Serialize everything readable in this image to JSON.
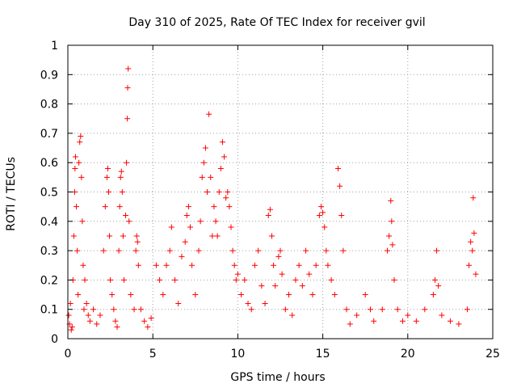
{
  "chart_data": {
    "type": "scatter",
    "title": "Day 310 of 2025, Rate Of TEC Index for receiver gvil",
    "xlabel": "GPS time / hours",
    "ylabel": "ROTI / TECUs",
    "xlim": [
      0,
      25
    ],
    "ylim": [
      0,
      1
    ],
    "xticks": [
      "0",
      "5",
      "10",
      "15",
      "20",
      "25"
    ],
    "yticks": [
      "0",
      "0.1",
      "0.2",
      "0.3",
      "0.4",
      "0.5",
      "0.6",
      "0.7",
      "0.8",
      "0.9",
      "1"
    ],
    "grid": true,
    "marker": "plus",
    "series": [
      {
        "color": "#ff0000",
        "points": [
          [
            0.05,
            0.08
          ],
          [
            0.1,
            0.05
          ],
          [
            0.15,
            0.12
          ],
          [
            0.2,
            0.03
          ],
          [
            0.25,
            0.04
          ],
          [
            0.3,
            0.2
          ],
          [
            0.35,
            0.35
          ],
          [
            0.4,
            0.5
          ],
          [
            0.42,
            0.58
          ],
          [
            0.45,
            0.62
          ],
          [
            0.5,
            0.45
          ],
          [
            0.55,
            0.3
          ],
          [
            0.6,
            0.15
          ],
          [
            0.65,
            0.6
          ],
          [
            0.7,
            0.67
          ],
          [
            0.75,
            0.69
          ],
          [
            0.8,
            0.55
          ],
          [
            0.85,
            0.4
          ],
          [
            0.9,
            0.25
          ],
          [
            0.95,
            0.1
          ],
          [
            1.0,
            0.2
          ],
          [
            1.1,
            0.12
          ],
          [
            1.2,
            0.08
          ],
          [
            1.3,
            0.06
          ],
          [
            1.5,
            0.1
          ],
          [
            1.7,
            0.05
          ],
          [
            1.9,
            0.08
          ],
          [
            2.1,
            0.3
          ],
          [
            2.2,
            0.45
          ],
          [
            2.3,
            0.55
          ],
          [
            2.35,
            0.58
          ],
          [
            2.4,
            0.5
          ],
          [
            2.45,
            0.35
          ],
          [
            2.5,
            0.2
          ],
          [
            2.6,
            0.15
          ],
          [
            2.7,
            0.1
          ],
          [
            2.8,
            0.06
          ],
          [
            2.9,
            0.04
          ],
          [
            3.0,
            0.3
          ],
          [
            3.05,
            0.45
          ],
          [
            3.1,
            0.55
          ],
          [
            3.15,
            0.57
          ],
          [
            3.2,
            0.5
          ],
          [
            3.25,
            0.35
          ],
          [
            3.3,
            0.2
          ],
          [
            3.4,
            0.42
          ],
          [
            3.45,
            0.6
          ],
          [
            3.5,
            0.75
          ],
          [
            3.52,
            0.855
          ],
          [
            3.55,
            0.92
          ],
          [
            3.6,
            0.4
          ],
          [
            3.7,
            0.15
          ],
          [
            3.9,
            0.1
          ],
          [
            4.0,
            0.3
          ],
          [
            4.05,
            0.35
          ],
          [
            4.1,
            0.33
          ],
          [
            4.15,
            0.25
          ],
          [
            4.3,
            0.1
          ],
          [
            4.5,
            0.06
          ],
          [
            4.7,
            0.04
          ],
          [
            4.9,
            0.07
          ],
          [
            5.2,
            0.25
          ],
          [
            5.4,
            0.2
          ],
          [
            5.6,
            0.15
          ],
          [
            5.8,
            0.25
          ],
          [
            6.0,
            0.3
          ],
          [
            6.1,
            0.38
          ],
          [
            6.3,
            0.2
          ],
          [
            6.5,
            0.12
          ],
          [
            6.7,
            0.28
          ],
          [
            6.9,
            0.33
          ],
          [
            7.0,
            0.42
          ],
          [
            7.1,
            0.45
          ],
          [
            7.2,
            0.38
          ],
          [
            7.3,
            0.25
          ],
          [
            7.5,
            0.15
          ],
          [
            7.7,
            0.3
          ],
          [
            7.8,
            0.4
          ],
          [
            7.9,
            0.55
          ],
          [
            8.0,
            0.6
          ],
          [
            8.1,
            0.65
          ],
          [
            8.2,
            0.5
          ],
          [
            8.3,
            0.765
          ],
          [
            8.4,
            0.55
          ],
          [
            8.5,
            0.35
          ],
          [
            8.6,
            0.45
          ],
          [
            8.7,
            0.4
          ],
          [
            8.8,
            0.35
          ],
          [
            8.9,
            0.5
          ],
          [
            9.0,
            0.58
          ],
          [
            9.1,
            0.67
          ],
          [
            9.2,
            0.62
          ],
          [
            9.3,
            0.48
          ],
          [
            9.4,
            0.5
          ],
          [
            9.5,
            0.45
          ],
          [
            9.6,
            0.38
          ],
          [
            9.7,
            0.3
          ],
          [
            9.8,
            0.25
          ],
          [
            9.9,
            0.2
          ],
          [
            10.0,
            0.22
          ],
          [
            10.2,
            0.15
          ],
          [
            10.4,
            0.2
          ],
          [
            10.6,
            0.12
          ],
          [
            10.8,
            0.1
          ],
          [
            11.0,
            0.25
          ],
          [
            11.2,
            0.3
          ],
          [
            11.4,
            0.18
          ],
          [
            11.6,
            0.12
          ],
          [
            11.8,
            0.42
          ],
          [
            11.9,
            0.44
          ],
          [
            12.0,
            0.35
          ],
          [
            12.1,
            0.25
          ],
          [
            12.2,
            0.18
          ],
          [
            12.4,
            0.28
          ],
          [
            12.5,
            0.3
          ],
          [
            12.6,
            0.22
          ],
          [
            12.8,
            0.1
          ],
          [
            13.0,
            0.15
          ],
          [
            13.2,
            0.08
          ],
          [
            13.4,
            0.2
          ],
          [
            13.6,
            0.25
          ],
          [
            13.8,
            0.18
          ],
          [
            14.0,
            0.3
          ],
          [
            14.2,
            0.22
          ],
          [
            14.4,
            0.15
          ],
          [
            14.6,
            0.25
          ],
          [
            14.8,
            0.42
          ],
          [
            14.9,
            0.45
          ],
          [
            15.0,
            0.43
          ],
          [
            15.1,
            0.38
          ],
          [
            15.2,
            0.3
          ],
          [
            15.3,
            0.25
          ],
          [
            15.5,
            0.2
          ],
          [
            15.7,
            0.15
          ],
          [
            15.9,
            0.58
          ],
          [
            16.0,
            0.52
          ],
          [
            16.1,
            0.42
          ],
          [
            16.2,
            0.3
          ],
          [
            16.4,
            0.1
          ],
          [
            16.6,
            0.05
          ],
          [
            17.0,
            0.08
          ],
          [
            17.5,
            0.15
          ],
          [
            17.8,
            0.1
          ],
          [
            18.0,
            0.06
          ],
          [
            18.5,
            0.1
          ],
          [
            18.8,
            0.3
          ],
          [
            18.9,
            0.35
          ],
          [
            19.0,
            0.47
          ],
          [
            19.05,
            0.4
          ],
          [
            19.1,
            0.32
          ],
          [
            19.2,
            0.2
          ],
          [
            19.4,
            0.1
          ],
          [
            19.7,
            0.06
          ],
          [
            20.0,
            0.08
          ],
          [
            20.5,
            0.06
          ],
          [
            21.0,
            0.1
          ],
          [
            21.5,
            0.15
          ],
          [
            21.6,
            0.2
          ],
          [
            21.7,
            0.3
          ],
          [
            21.8,
            0.18
          ],
          [
            22.0,
            0.08
          ],
          [
            22.5,
            0.06
          ],
          [
            23.0,
            0.05
          ],
          [
            23.5,
            0.1
          ],
          [
            23.6,
            0.25
          ],
          [
            23.7,
            0.33
          ],
          [
            23.8,
            0.3
          ],
          [
            23.85,
            0.48
          ],
          [
            23.9,
            0.36
          ],
          [
            24.0,
            0.22
          ]
        ]
      }
    ]
  }
}
